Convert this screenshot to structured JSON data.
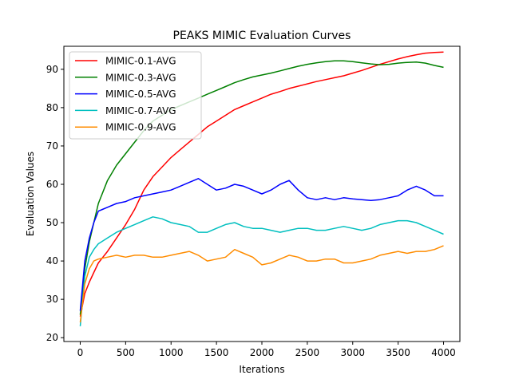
{
  "chart_data": {
    "type": "line",
    "title": "PEAKS MIMIC Evaluation Curves",
    "xlabel": "Iterations",
    "ylabel": "Evaluation Values",
    "xlim": [
      -180,
      4180
    ],
    "ylim": [
      19,
      96
    ],
    "xticks": [
      0,
      500,
      1000,
      1500,
      2000,
      2500,
      3000,
      3500,
      4000
    ],
    "yticks": [
      20,
      30,
      40,
      50,
      60,
      70,
      80,
      90
    ],
    "legend_position": "upper-left",
    "grid": false,
    "series": [
      {
        "name": "MIMIC-0.1-AVG",
        "color": "#ff0000",
        "x": [
          0,
          50,
          100,
          150,
          200,
          300,
          400,
          500,
          600,
          700,
          800,
          900,
          1000,
          1100,
          1200,
          1300,
          1400,
          1500,
          1600,
          1700,
          1800,
          1900,
          2000,
          2100,
          2200,
          2300,
          2400,
          2500,
          2600,
          2700,
          2800,
          2900,
          3000,
          3100,
          3200,
          3300,
          3400,
          3500,
          3600,
          3700,
          3800,
          3900,
          4000
        ],
        "y": [
          25.5,
          31.5,
          34.5,
          37,
          39.5,
          42.5,
          46,
          49.5,
          53.5,
          58.5,
          62,
          64.5,
          67,
          69,
          71,
          73,
          75,
          76.5,
          78,
          79.5,
          80.5,
          81.5,
          82.5,
          83.5,
          84.2,
          85,
          85.6,
          86.2,
          86.8,
          87.3,
          87.8,
          88.3,
          89,
          89.7,
          90.5,
          91.3,
          92,
          92.7,
          93.3,
          93.8,
          94.2,
          94.4,
          94.5
        ]
      },
      {
        "name": "MIMIC-0.3-AVG",
        "color": "#008000",
        "x": [
          0,
          50,
          100,
          150,
          200,
          300,
          400,
          500,
          600,
          700,
          800,
          900,
          1000,
          1100,
          1200,
          1300,
          1400,
          1500,
          1600,
          1700,
          1800,
          1900,
          2000,
          2100,
          2200,
          2300,
          2400,
          2500,
          2600,
          2700,
          2800,
          2900,
          3000,
          3100,
          3200,
          3300,
          3400,
          3500,
          3600,
          3700,
          3800,
          3900,
          4000
        ],
        "y": [
          26,
          38,
          45,
          50,
          55,
          61,
          65,
          68,
          71,
          74,
          76.5,
          78,
          79.5,
          80.5,
          81.5,
          82.5,
          83.5,
          84.5,
          85.5,
          86.5,
          87.3,
          88,
          88.5,
          89,
          89.6,
          90.2,
          90.8,
          91.3,
          91.7,
          92,
          92.2,
          92.2,
          92,
          91.7,
          91.4,
          91.2,
          91.3,
          91.6,
          91.8,
          91.9,
          91.6,
          91,
          90.5
        ]
      },
      {
        "name": "MIMIC-0.5-AVG",
        "color": "#0000ff",
        "x": [
          0,
          50,
          100,
          150,
          200,
          300,
          400,
          500,
          600,
          700,
          800,
          900,
          1000,
          1100,
          1200,
          1300,
          1400,
          1500,
          1600,
          1700,
          1800,
          1900,
          2000,
          2100,
          2200,
          2300,
          2400,
          2500,
          2600,
          2700,
          2800,
          2900,
          3000,
          3100,
          3200,
          3300,
          3400,
          3500,
          3600,
          3700,
          3800,
          3900,
          4000
        ],
        "y": [
          27,
          40,
          46,
          50,
          53,
          54,
          55,
          55.5,
          56.5,
          57,
          57.5,
          58,
          58.5,
          59.5,
          60.5,
          61.5,
          60,
          58.5,
          59,
          60,
          59.5,
          58.5,
          57.5,
          58.5,
          60,
          61,
          58.5,
          56.5,
          56,
          56.5,
          56,
          56.5,
          56.2,
          56,
          55.8,
          56,
          56.5,
          57,
          58.5,
          59.5,
          58.5,
          57,
          57
        ]
      },
      {
        "name": "MIMIC-0.7-AVG",
        "color": "#00bfbf",
        "x": [
          0,
          50,
          100,
          150,
          200,
          300,
          400,
          500,
          600,
          700,
          800,
          900,
          1000,
          1100,
          1200,
          1300,
          1400,
          1500,
          1600,
          1700,
          1800,
          1900,
          2000,
          2100,
          2200,
          2300,
          2400,
          2500,
          2600,
          2700,
          2800,
          2900,
          3000,
          3100,
          3200,
          3300,
          3400,
          3500,
          3600,
          3700,
          3800,
          3900,
          4000
        ],
        "y": [
          23,
          36,
          41,
          43,
          44.5,
          46,
          47.5,
          48.5,
          49.5,
          50.5,
          51.5,
          51,
          50,
          49.5,
          49,
          47.5,
          47.5,
          48.5,
          49.5,
          50,
          49,
          48.5,
          48.5,
          48,
          47.5,
          48,
          48.5,
          48.5,
          48,
          48,
          48.5,
          49,
          48.5,
          48,
          48.5,
          49.5,
          50,
          50.5,
          50.5,
          50,
          49,
          48,
          47
        ]
      },
      {
        "name": "MIMIC-0.9-AVG",
        "color": "#ff8c00",
        "x": [
          0,
          50,
          100,
          150,
          200,
          300,
          400,
          500,
          600,
          700,
          800,
          900,
          1000,
          1100,
          1200,
          1300,
          1400,
          1500,
          1600,
          1700,
          1800,
          1900,
          2000,
          2100,
          2200,
          2300,
          2400,
          2500,
          2600,
          2700,
          2800,
          2900,
          3000,
          3100,
          3200,
          3300,
          3400,
          3500,
          3600,
          3700,
          3800,
          3900,
          4000
        ],
        "y": [
          24,
          34,
          38,
          40,
          40.5,
          41,
          41.5,
          41,
          41.5,
          41.5,
          41,
          41,
          41.5,
          42,
          42.5,
          41.5,
          40,
          40.5,
          41,
          43,
          42,
          41,
          39,
          39.5,
          40.5,
          41.5,
          41,
          40,
          40,
          40.5,
          40.5,
          39.5,
          39.5,
          40,
          40.5,
          41.5,
          42,
          42.5,
          42,
          42.5,
          42.5,
          43,
          44
        ]
      }
    ]
  }
}
